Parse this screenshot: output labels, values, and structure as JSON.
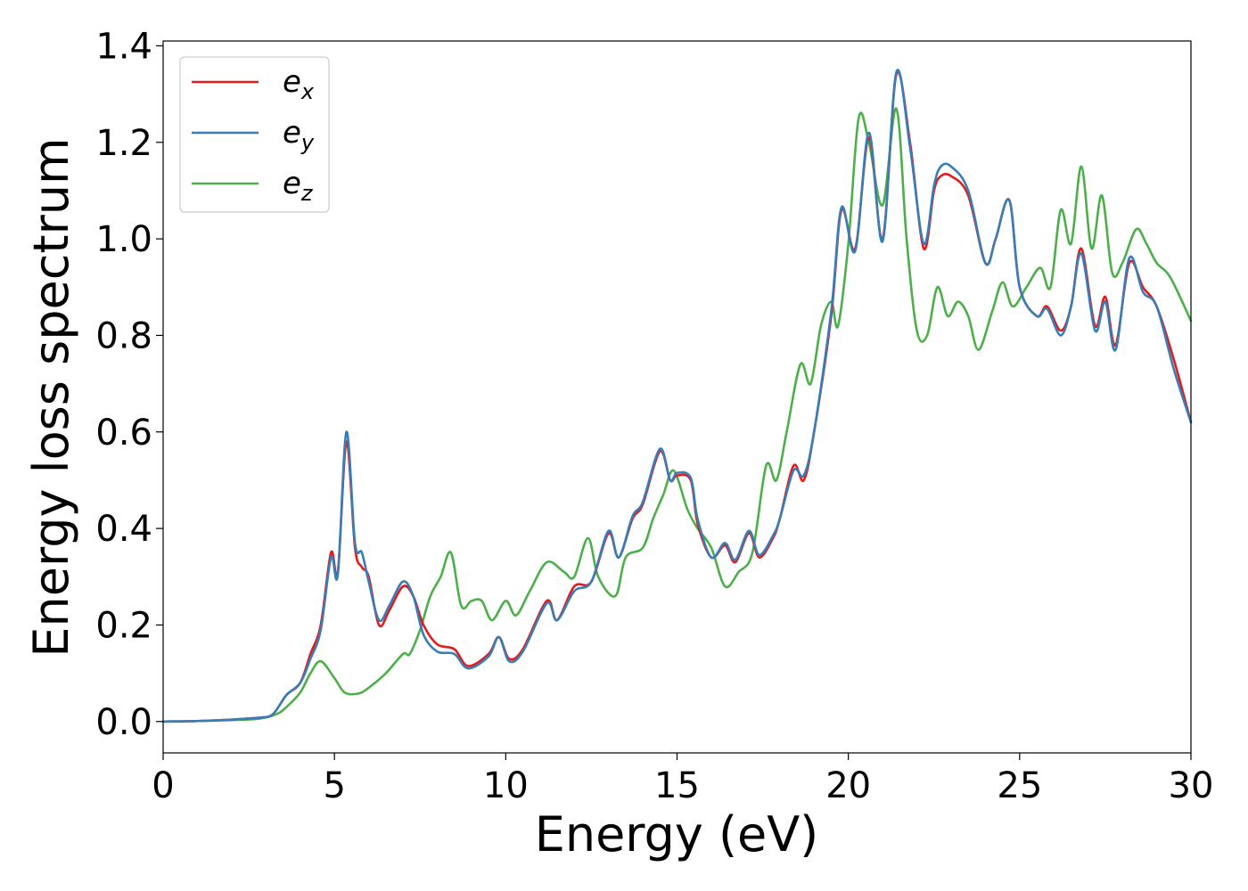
{
  "chart_data": {
    "type": "line",
    "title": "",
    "xlabel": "Energy (eV)",
    "ylabel": "Energy loss spectrum",
    "xlim": [
      0,
      30
    ],
    "ylim": [
      -0.065,
      1.41
    ],
    "xticks": [
      0,
      5,
      10,
      15,
      20,
      25,
      30
    ],
    "xtick_labels": [
      "0",
      "5",
      "10",
      "15",
      "20",
      "25",
      "30"
    ],
    "yticks": [
      0.0,
      0.2,
      0.4,
      0.6,
      0.8,
      1.0,
      1.2,
      1.4
    ],
    "ytick_labels": [
      "0.0",
      "0.2",
      "0.4",
      "0.6",
      "0.8",
      "1.0",
      "1.2",
      "1.4"
    ],
    "grid": false,
    "legend_position": "top-left",
    "series": [
      {
        "name": "e_x",
        "label_base": "e",
        "label_sub": "x",
        "color": "#e41a1c",
        "points": [
          [
            0,
            0
          ],
          [
            1,
            0.001
          ],
          [
            2,
            0.004
          ],
          [
            2.8,
            0.008
          ],
          [
            3.2,
            0.015
          ],
          [
            3.6,
            0.055
          ],
          [
            4.0,
            0.08
          ],
          [
            4.3,
            0.14
          ],
          [
            4.6,
            0.2
          ],
          [
            4.9,
            0.35
          ],
          [
            5.1,
            0.31
          ],
          [
            5.35,
            0.58
          ],
          [
            5.6,
            0.36
          ],
          [
            5.8,
            0.32
          ],
          [
            6.0,
            0.3
          ],
          [
            6.3,
            0.2
          ],
          [
            6.6,
            0.23
          ],
          [
            7.0,
            0.28
          ],
          [
            7.3,
            0.26
          ],
          [
            7.6,
            0.2
          ],
          [
            8.0,
            0.16
          ],
          [
            8.5,
            0.15
          ],
          [
            8.9,
            0.115
          ],
          [
            9.5,
            0.14
          ],
          [
            9.8,
            0.175
          ],
          [
            10.1,
            0.13
          ],
          [
            10.5,
            0.15
          ],
          [
            11.2,
            0.25
          ],
          [
            11.5,
            0.21
          ],
          [
            12.0,
            0.28
          ],
          [
            12.5,
            0.29
          ],
          [
            13.0,
            0.39
          ],
          [
            13.3,
            0.34
          ],
          [
            13.7,
            0.42
          ],
          [
            14.0,
            0.45
          ],
          [
            14.5,
            0.56
          ],
          [
            14.8,
            0.5
          ],
          [
            15.0,
            0.51
          ],
          [
            15.4,
            0.5
          ],
          [
            15.6,
            0.41
          ],
          [
            16.0,
            0.34
          ],
          [
            16.4,
            0.365
          ],
          [
            16.7,
            0.33
          ],
          [
            17.1,
            0.39
          ],
          [
            17.4,
            0.34
          ],
          [
            17.8,
            0.38
          ],
          [
            18.0,
            0.42
          ],
          [
            18.4,
            0.53
          ],
          [
            18.7,
            0.5
          ],
          [
            19.0,
            0.6
          ],
          [
            19.5,
            0.84
          ],
          [
            19.8,
            1.06
          ],
          [
            20.2,
            0.98
          ],
          [
            20.6,
            1.21
          ],
          [
            21.0,
            1.0
          ],
          [
            21.4,
            1.34
          ],
          [
            21.8,
            1.2
          ],
          [
            22.2,
            0.98
          ],
          [
            22.5,
            1.1
          ],
          [
            22.7,
            1.13
          ],
          [
            23.0,
            1.13
          ],
          [
            23.5,
            1.09
          ],
          [
            24.0,
            0.95
          ],
          [
            24.3,
            1.0
          ],
          [
            24.7,
            1.08
          ],
          [
            25.0,
            0.9
          ],
          [
            25.5,
            0.84
          ],
          [
            25.8,
            0.86
          ],
          [
            26.2,
            0.81
          ],
          [
            26.5,
            0.86
          ],
          [
            26.8,
            0.98
          ],
          [
            27.2,
            0.82
          ],
          [
            27.5,
            0.88
          ],
          [
            27.8,
            0.78
          ],
          [
            28.2,
            0.95
          ],
          [
            28.6,
            0.9
          ],
          [
            29.0,
            0.86
          ],
          [
            29.5,
            0.75
          ],
          [
            30.0,
            0.62
          ]
        ]
      },
      {
        "name": "e_y",
        "label_base": "e",
        "label_sub": "y",
        "color": "#377eb8",
        "points": [
          [
            0,
            0
          ],
          [
            1,
            0.001
          ],
          [
            2,
            0.004
          ],
          [
            2.8,
            0.008
          ],
          [
            3.2,
            0.015
          ],
          [
            3.6,
            0.055
          ],
          [
            4.0,
            0.08
          ],
          [
            4.3,
            0.13
          ],
          [
            4.6,
            0.19
          ],
          [
            4.9,
            0.34
          ],
          [
            5.1,
            0.305
          ],
          [
            5.35,
            0.6
          ],
          [
            5.6,
            0.37
          ],
          [
            5.8,
            0.35
          ],
          [
            6.0,
            0.29
          ],
          [
            6.3,
            0.21
          ],
          [
            6.6,
            0.24
          ],
          [
            7.0,
            0.29
          ],
          [
            7.3,
            0.26
          ],
          [
            7.6,
            0.18
          ],
          [
            8.0,
            0.145
          ],
          [
            8.5,
            0.14
          ],
          [
            8.9,
            0.11
          ],
          [
            9.5,
            0.135
          ],
          [
            9.8,
            0.175
          ],
          [
            10.1,
            0.125
          ],
          [
            10.5,
            0.145
          ],
          [
            11.2,
            0.245
          ],
          [
            11.5,
            0.21
          ],
          [
            12.0,
            0.27
          ],
          [
            12.5,
            0.29
          ],
          [
            13.0,
            0.395
          ],
          [
            13.3,
            0.34
          ],
          [
            13.7,
            0.425
          ],
          [
            14.0,
            0.455
          ],
          [
            14.5,
            0.565
          ],
          [
            14.8,
            0.5
          ],
          [
            15.0,
            0.515
          ],
          [
            15.4,
            0.505
          ],
          [
            15.6,
            0.42
          ],
          [
            16.0,
            0.34
          ],
          [
            16.4,
            0.37
          ],
          [
            16.7,
            0.335
          ],
          [
            17.1,
            0.395
          ],
          [
            17.4,
            0.345
          ],
          [
            17.8,
            0.385
          ],
          [
            18.0,
            0.42
          ],
          [
            18.4,
            0.52
          ],
          [
            18.7,
            0.51
          ],
          [
            19.0,
            0.6
          ],
          [
            19.5,
            0.85
          ],
          [
            19.8,
            1.065
          ],
          [
            20.2,
            0.975
          ],
          [
            20.6,
            1.22
          ],
          [
            21.0,
            0.995
          ],
          [
            21.4,
            1.345
          ],
          [
            21.8,
            1.19
          ],
          [
            22.2,
            0.99
          ],
          [
            22.5,
            1.11
          ],
          [
            22.7,
            1.15
          ],
          [
            23.0,
            1.15
          ],
          [
            23.5,
            1.1
          ],
          [
            24.0,
            0.95
          ],
          [
            24.3,
            1.0
          ],
          [
            24.7,
            1.08
          ],
          [
            25.0,
            0.9
          ],
          [
            25.5,
            0.84
          ],
          [
            25.8,
            0.855
          ],
          [
            26.2,
            0.8
          ],
          [
            26.5,
            0.86
          ],
          [
            26.8,
            0.97
          ],
          [
            27.2,
            0.81
          ],
          [
            27.5,
            0.87
          ],
          [
            27.8,
            0.77
          ],
          [
            28.2,
            0.96
          ],
          [
            28.6,
            0.89
          ],
          [
            29.0,
            0.86
          ],
          [
            29.5,
            0.73
          ],
          [
            30.0,
            0.62
          ]
        ]
      },
      {
        "name": "e_z",
        "label_base": "e",
        "label_sub": "z",
        "color": "#4daf4a",
        "points": [
          [
            0,
            0
          ],
          [
            1,
            0.001
          ],
          [
            2,
            0.003
          ],
          [
            2.8,
            0.006
          ],
          [
            3.3,
            0.015
          ],
          [
            3.6,
            0.03
          ],
          [
            4.0,
            0.06
          ],
          [
            4.3,
            0.1
          ],
          [
            4.6,
            0.125
          ],
          [
            5.0,
            0.09
          ],
          [
            5.3,
            0.06
          ],
          [
            5.7,
            0.058
          ],
          [
            6.0,
            0.07
          ],
          [
            6.5,
            0.1
          ],
          [
            7.0,
            0.14
          ],
          [
            7.2,
            0.14
          ],
          [
            7.5,
            0.19
          ],
          [
            7.8,
            0.26
          ],
          [
            8.1,
            0.3
          ],
          [
            8.4,
            0.35
          ],
          [
            8.7,
            0.24
          ],
          [
            9.0,
            0.25
          ],
          [
            9.3,
            0.25
          ],
          [
            9.6,
            0.21
          ],
          [
            10.0,
            0.25
          ],
          [
            10.3,
            0.22
          ],
          [
            10.7,
            0.27
          ],
          [
            11.2,
            0.33
          ],
          [
            11.7,
            0.31
          ],
          [
            12.0,
            0.3
          ],
          [
            12.4,
            0.38
          ],
          [
            12.7,
            0.3
          ],
          [
            13.2,
            0.26
          ],
          [
            13.5,
            0.34
          ],
          [
            14.0,
            0.36
          ],
          [
            14.3,
            0.42
          ],
          [
            14.6,
            0.47
          ],
          [
            14.9,
            0.52
          ],
          [
            15.3,
            0.44
          ],
          [
            15.6,
            0.4
          ],
          [
            16.0,
            0.36
          ],
          [
            16.4,
            0.28
          ],
          [
            16.8,
            0.31
          ],
          [
            17.2,
            0.35
          ],
          [
            17.6,
            0.53
          ],
          [
            17.9,
            0.5
          ],
          [
            18.2,
            0.6
          ],
          [
            18.6,
            0.74
          ],
          [
            18.9,
            0.7
          ],
          [
            19.2,
            0.82
          ],
          [
            19.5,
            0.87
          ],
          [
            19.7,
            0.82
          ],
          [
            20.0,
            0.99
          ],
          [
            20.3,
            1.25
          ],
          [
            20.6,
            1.2
          ],
          [
            21.0,
            1.07
          ],
          [
            21.4,
            1.27
          ],
          [
            21.7,
            1.0
          ],
          [
            22.0,
            0.81
          ],
          [
            22.3,
            0.8
          ],
          [
            22.6,
            0.9
          ],
          [
            22.9,
            0.84
          ],
          [
            23.2,
            0.87
          ],
          [
            23.5,
            0.84
          ],
          [
            23.8,
            0.77
          ],
          [
            24.2,
            0.85
          ],
          [
            24.5,
            0.91
          ],
          [
            24.8,
            0.86
          ],
          [
            25.2,
            0.9
          ],
          [
            25.6,
            0.94
          ],
          [
            25.9,
            0.9
          ],
          [
            26.2,
            1.06
          ],
          [
            26.5,
            0.99
          ],
          [
            26.8,
            1.15
          ],
          [
            27.1,
            0.98
          ],
          [
            27.4,
            1.09
          ],
          [
            27.7,
            0.93
          ],
          [
            28.0,
            0.95
          ],
          [
            28.4,
            1.02
          ],
          [
            28.7,
            0.99
          ],
          [
            29.0,
            0.95
          ],
          [
            29.4,
            0.92
          ],
          [
            30.0,
            0.83
          ]
        ]
      }
    ]
  }
}
